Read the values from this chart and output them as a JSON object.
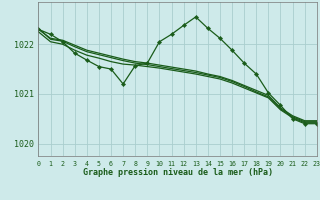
{
  "background_color": "#ceeaea",
  "grid_color": "#aacece",
  "line_color": "#1a5c1a",
  "title": "Graphe pression niveau de la mer (hPa)",
  "xlim": [
    0,
    23
  ],
  "ylim": [
    1019.75,
    1022.85
  ],
  "yticks": [
    1020,
    1021,
    1022
  ],
  "xticks": [
    0,
    1,
    2,
    3,
    4,
    5,
    6,
    7,
    8,
    9,
    10,
    11,
    12,
    13,
    14,
    15,
    16,
    17,
    18,
    19,
    20,
    21,
    22,
    23
  ],
  "series": [
    {
      "x": [
        0,
        1,
        2,
        3,
        4,
        5,
        6,
        7,
        8,
        9,
        10,
        11,
        12,
        13,
        14,
        15,
        16,
        17,
        18,
        19,
        20,
        21,
        22,
        23
      ],
      "y": [
        1022.3,
        1022.2,
        1022.05,
        1021.82,
        1021.68,
        1021.55,
        1021.5,
        1021.2,
        1021.57,
        1021.62,
        1022.05,
        1022.2,
        1022.38,
        1022.55,
        1022.32,
        1022.12,
        1021.88,
        1021.62,
        1021.4,
        1021.02,
        1020.77,
        1020.5,
        1020.4,
        1020.4
      ],
      "marker": true,
      "linewidth": 0.9,
      "markersize": 2.2
    },
    {
      "x": [
        0,
        1,
        2,
        3,
        4,
        5,
        6,
        7,
        8,
        9,
        10,
        11,
        12,
        13,
        14,
        15,
        16,
        17,
        18,
        19,
        20,
        21,
        22,
        23
      ],
      "y": [
        1022.25,
        1022.05,
        1022.0,
        1021.88,
        1021.78,
        1021.72,
        1021.65,
        1021.6,
        1021.58,
        1021.55,
        1021.52,
        1021.48,
        1021.44,
        1021.4,
        1021.35,
        1021.3,
        1021.22,
        1021.12,
        1021.02,
        1020.92,
        1020.68,
        1020.52,
        1020.42,
        1020.42
      ],
      "marker": false,
      "linewidth": 0.9
    },
    {
      "x": [
        0,
        1,
        2,
        3,
        4,
        5,
        6,
        7,
        8,
        9,
        10,
        11,
        12,
        13,
        14,
        15,
        16,
        17,
        18,
        19,
        20,
        21,
        22,
        23
      ],
      "y": [
        1022.3,
        1022.12,
        1022.08,
        1021.98,
        1021.88,
        1021.82,
        1021.76,
        1021.7,
        1021.65,
        1021.62,
        1021.58,
        1021.54,
        1021.5,
        1021.46,
        1021.4,
        1021.35,
        1021.27,
        1021.17,
        1021.07,
        1020.97,
        1020.72,
        1020.56,
        1020.46,
        1020.46
      ],
      "marker": false,
      "linewidth": 0.9
    },
    {
      "x": [
        0,
        1,
        2,
        3,
        4,
        5,
        6,
        7,
        8,
        9,
        10,
        11,
        12,
        13,
        14,
        15,
        16,
        17,
        18,
        19,
        20,
        21,
        22,
        23
      ],
      "y": [
        1022.32,
        1022.1,
        1022.06,
        1021.95,
        1021.85,
        1021.79,
        1021.73,
        1021.67,
        1021.62,
        1021.59,
        1021.55,
        1021.51,
        1021.47,
        1021.43,
        1021.38,
        1021.33,
        1021.25,
        1021.15,
        1021.04,
        1020.94,
        1020.7,
        1020.54,
        1020.44,
        1020.44
      ],
      "marker": false,
      "linewidth": 0.9
    }
  ]
}
